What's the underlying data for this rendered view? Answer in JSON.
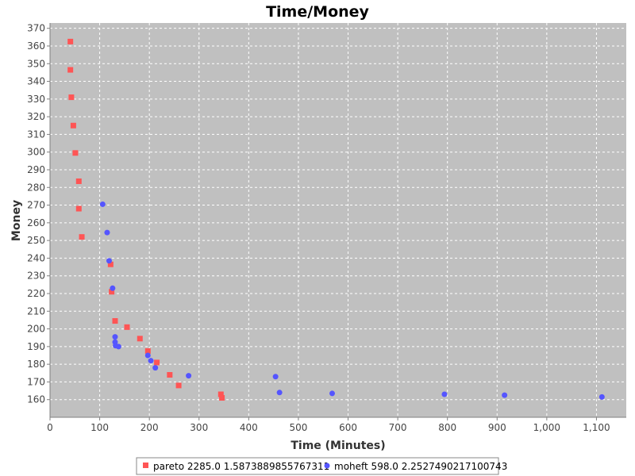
{
  "chart_data": {
    "type": "scatter",
    "title": "Time/Money",
    "xlabel": "Time (Minutes)",
    "ylabel": "Money",
    "xlim": [
      0,
      1160
    ],
    "ylim": [
      150,
      373
    ],
    "x_ticks": [
      0,
      100,
      200,
      300,
      400,
      500,
      600,
      700,
      800,
      900,
      1000,
      1100
    ],
    "x_tick_labels": [
      "0",
      "100",
      "200",
      "300",
      "400",
      "500",
      "600",
      "700",
      "800",
      "900",
      "1,000",
      "1,100"
    ],
    "y_ticks": [
      160,
      170,
      180,
      190,
      200,
      210,
      220,
      230,
      240,
      250,
      260,
      270,
      280,
      290,
      300,
      310,
      320,
      330,
      340,
      350,
      360,
      370
    ],
    "grid": true,
    "legend_position": "bottom",
    "series": [
      {
        "name": "pareto 2285.0 1.5873889855767311",
        "marker": "square",
        "color": "#ff5555",
        "points": [
          [
            41,
            362.5
          ],
          [
            41,
            346.5
          ],
          [
            43,
            331
          ],
          [
            47,
            315
          ],
          [
            51,
            299.5
          ],
          [
            58,
            283.5
          ],
          [
            58,
            268
          ],
          [
            64,
            252
          ],
          [
            122,
            236.5
          ],
          [
            124,
            221
          ],
          [
            131,
            204.5
          ],
          [
            155,
            201
          ],
          [
            181,
            194.5
          ],
          [
            197,
            187.5
          ],
          [
            215,
            181
          ],
          [
            241,
            174
          ],
          [
            259,
            168
          ],
          [
            344,
            163
          ],
          [
            346,
            161
          ]
        ]
      },
      {
        "name": "moheft 598.0 2.2527490217100743",
        "marker": "circle",
        "color": "#5555ff",
        "points": [
          [
            106,
            270.5
          ],
          [
            115,
            254.5
          ],
          [
            119,
            238.5
          ],
          [
            126,
            223
          ],
          [
            131,
            195.5
          ],
          [
            131,
            192.5
          ],
          [
            132,
            190.5
          ],
          [
            138,
            190
          ],
          [
            197,
            185
          ],
          [
            203,
            182
          ],
          [
            212,
            178
          ],
          [
            279,
            173.5
          ],
          [
            454,
            173
          ],
          [
            462,
            164
          ],
          [
            568,
            163.5
          ],
          [
            794,
            163
          ],
          [
            915,
            162.5
          ],
          [
            1111,
            161.5
          ]
        ]
      }
    ]
  }
}
